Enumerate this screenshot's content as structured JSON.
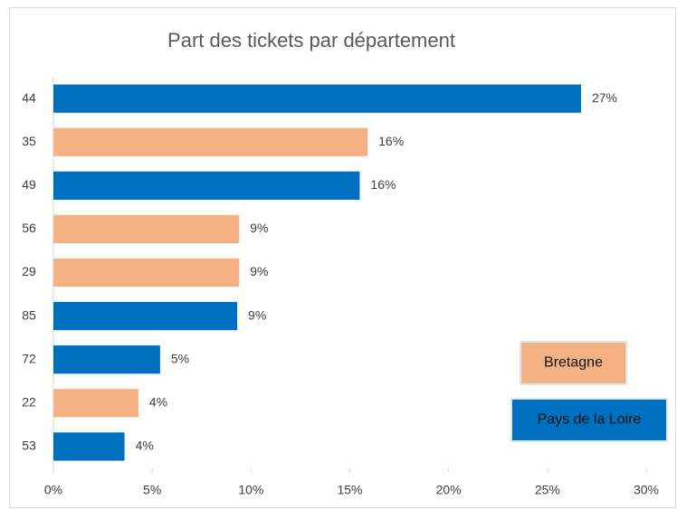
{
  "chart_data": {
    "type": "bar",
    "orientation": "horizontal",
    "title": "Part des tickets par département",
    "categories": [
      "44",
      "35",
      "49",
      "56",
      "29",
      "85",
      "72",
      "22",
      "53"
    ],
    "series": [
      {
        "name": "Bretagne",
        "color": "#f4b183",
        "values": [
          null,
          15.9,
          null,
          9.4,
          9.4,
          null,
          null,
          4.3,
          null
        ],
        "value_labels": [
          null,
          "16%",
          null,
          "9%",
          "9%",
          null,
          null,
          "4%",
          null
        ]
      },
      {
        "name": "Pays de la Loire",
        "color": "#0070c0",
        "values": [
          26.7,
          null,
          15.5,
          null,
          null,
          9.3,
          5.4,
          null,
          3.6
        ],
        "value_labels": [
          "27%",
          null,
          "16%",
          null,
          null,
          "9%",
          "5%",
          null,
          "4%"
        ]
      }
    ],
    "xlim": [
      0,
      30
    ],
    "xticks": [
      {
        "value": 0,
        "label": "0%"
      },
      {
        "value": 5,
        "label": "5%"
      },
      {
        "value": 10,
        "label": "10%"
      },
      {
        "value": 15,
        "label": "15%"
      },
      {
        "value": 20,
        "label": "20%"
      },
      {
        "value": 25,
        "label": "25%"
      },
      {
        "value": 30,
        "label": "30%"
      }
    ],
    "grid": false,
    "legend": "bottom-right"
  }
}
